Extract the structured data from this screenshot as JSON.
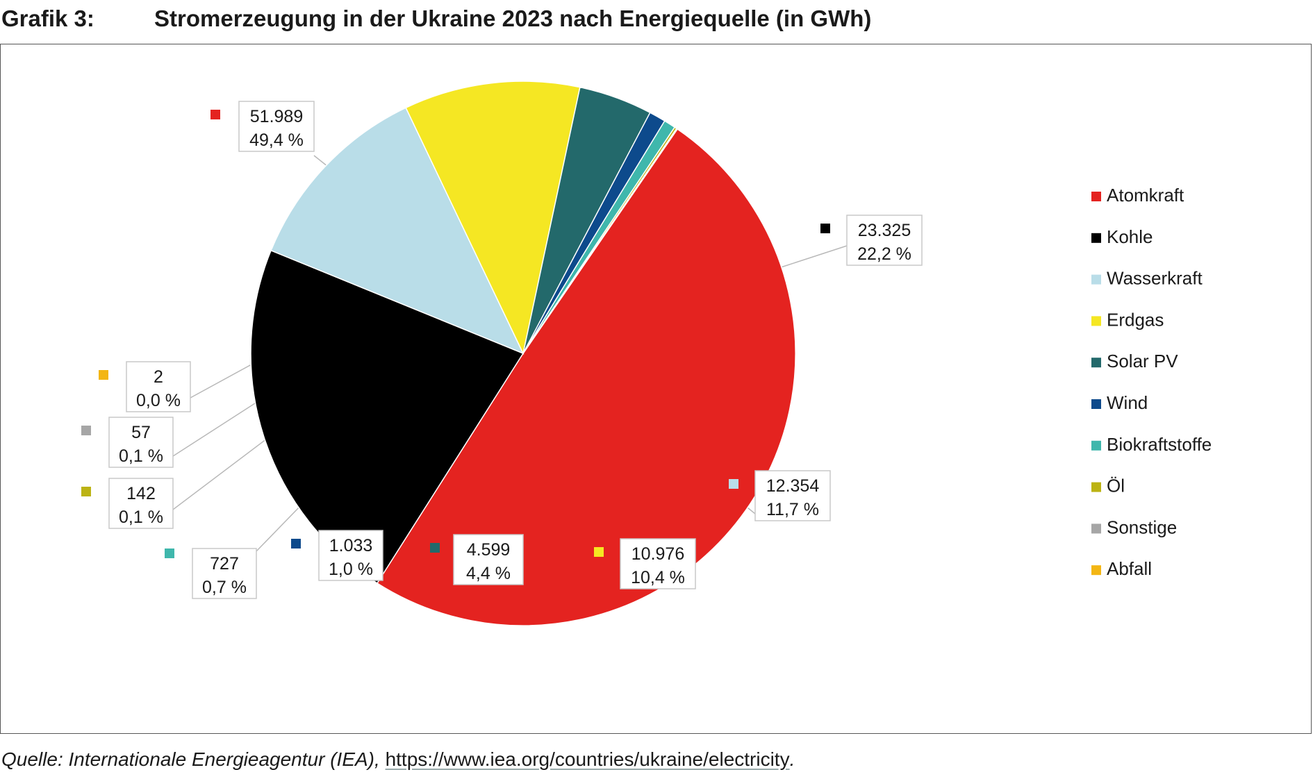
{
  "figure_label": "Grafik 3:",
  "title": "Stromerzeugung in der Ukraine 2023 nach Energiequelle (in GWh)",
  "source": {
    "label": "Quelle: Internationale Energieagentur (IEA),",
    "url": "https://www.iea.org/countries/ukraine/electricity",
    "end": "."
  },
  "chart_data": {
    "type": "pie",
    "title": "Stromerzeugung in der Ukraine 2023 nach Energiequelle (in GWh)",
    "legend_position": "right",
    "slices": [
      {
        "name": "Atomkraft",
        "value": 51989,
        "value_label": "51.989",
        "percent_label": "49,4 %",
        "color": "#e42320"
      },
      {
        "name": "Kohle",
        "value": 23325,
        "value_label": "23.325",
        "percent_label": "22,2 %",
        "color": "#000000"
      },
      {
        "name": "Wasserkraft",
        "value": 12354,
        "value_label": "12.354",
        "percent_label": "11,7 %",
        "color": "#b9dde8"
      },
      {
        "name": "Erdgas",
        "value": 10976,
        "value_label": "10.976",
        "percent_label": "10,4 %",
        "color": "#f5e723"
      },
      {
        "name": "Solar PV",
        "value": 4599,
        "value_label": "4.599",
        "percent_label": "4,4 %",
        "color": "#23696b"
      },
      {
        "name": "Wind",
        "value": 1033,
        "value_label": "1.033",
        "percent_label": "1,0 %",
        "color": "#0d4a8c"
      },
      {
        "name": "Biokraftstoffe",
        "value": 727,
        "value_label": "727",
        "percent_label": "0,7 %",
        "color": "#3fb7ac"
      },
      {
        "name": "Öl",
        "value": 142,
        "value_label": "142",
        "percent_label": "0,1 %",
        "color": "#bcb314"
      },
      {
        "name": "Sonstige",
        "value": 57,
        "value_label": "57",
        "percent_label": "0,1 %",
        "color": "#a6a6a6"
      },
      {
        "name": "Abfall",
        "value": 2,
        "value_label": "2",
        "percent_label": "0,0 %",
        "color": "#f3b614"
      }
    ]
  }
}
